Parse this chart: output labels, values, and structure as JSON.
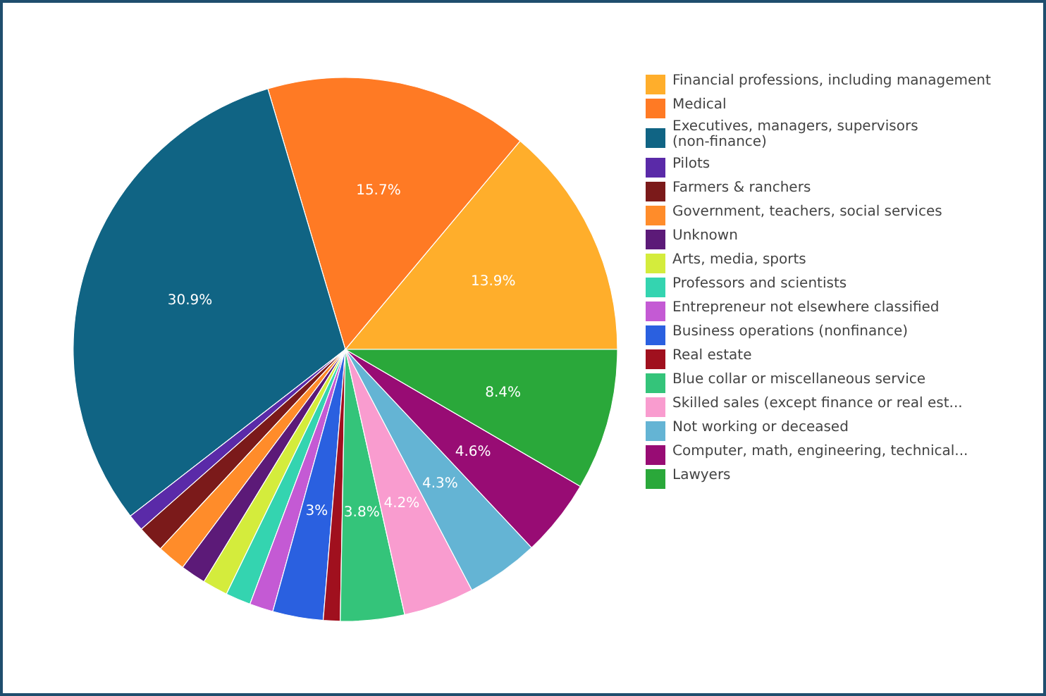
{
  "chart_data": {
    "type": "pie",
    "categories": [
      "Financial professions, including management",
      "Medical",
      "Executives, managers, supervisors (non-finance)",
      "Pilots",
      "Farmers & ranchers",
      "Government, teachers, social services",
      "Unknown",
      "Arts, media, sports",
      "Professors and scientists",
      "Entrepreneur not elsewhere classified",
      "Business operations (nonfinance)",
      "Real estate",
      "Blue collar or miscellaneous service",
      "Skilled sales (except finance or real est...",
      "Not working or deceased",
      "Computer, math, engineering, technical...",
      "Lawyers"
    ],
    "values": [
      13.9,
      15.7,
      30.9,
      1.0,
      1.6,
      1.7,
      1.5,
      1.5,
      1.5,
      1.4,
      3,
      1.0,
      3.8,
      4.2,
      4.3,
      4.6,
      8.4
    ],
    "value_labels": [
      "13.9%",
      "15.7%",
      "30.9%",
      null,
      null,
      null,
      null,
      null,
      null,
      null,
      "3%",
      null,
      "3.8%",
      "4.2%",
      "4.3%",
      "4.6%",
      "8.4%"
    ],
    "colors": [
      "#ffae2b",
      "#ff7a24",
      "#106484",
      "#5a2aa8",
      "#7b1a1a",
      "#ff8c2a",
      "#5c1a78",
      "#d4ec3c",
      "#34d4b0",
      "#c45ad4",
      "#2a60e0",
      "#a0101e",
      "#34c47a",
      "#f99ccf",
      "#64b4d4",
      "#980c74",
      "#2aa83a"
    ],
    "legend": "right"
  }
}
